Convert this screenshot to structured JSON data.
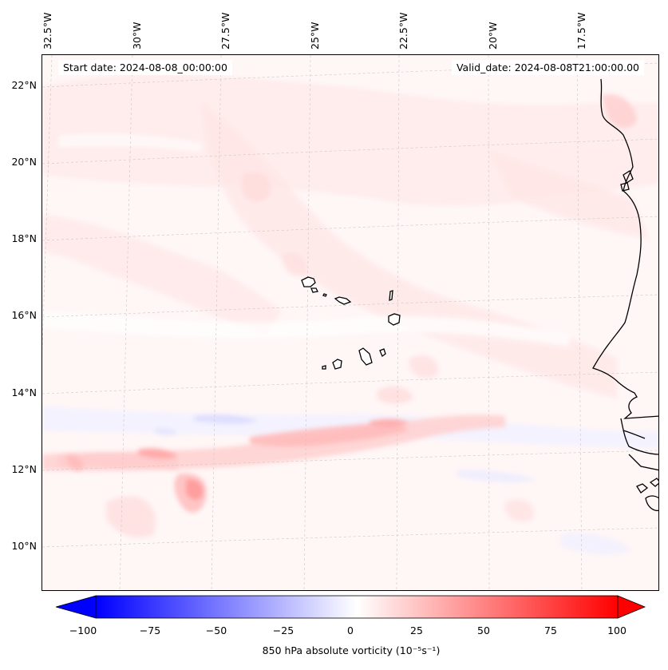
{
  "map": {
    "start_label": "Start date: 2024-08-08_00:00:00",
    "valid_label": "Valid_date: 2024-08-08T21:00:00.00",
    "lon_labels": [
      "32.5°W",
      "30°W",
      "27.5°W",
      "25°W",
      "22.5°W",
      "20°W",
      "17.5°W"
    ],
    "lat_labels": [
      "22°N",
      "20°N",
      "18°N",
      "16°N",
      "14°N",
      "12°N",
      "10°N"
    ],
    "coastline_color": "#000000",
    "gridline_color": "#c8c8c8"
  },
  "colorbar": {
    "tick_labels": [
      "−100",
      "−75",
      "−50",
      "−25",
      "0",
      "25",
      "50",
      "75",
      "100"
    ],
    "label": "850 hPa absolute vorticity (10⁻⁵s⁻¹)",
    "min": -100,
    "max": 100,
    "colormap": "bwr",
    "negative_color": "#0000ff",
    "zero_color": "#ffffff",
    "positive_color": "#ff0000"
  }
}
